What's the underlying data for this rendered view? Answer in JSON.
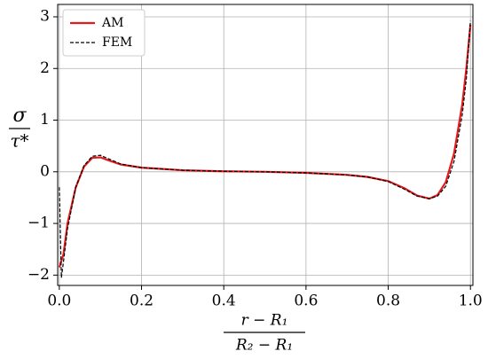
{
  "chart_data": {
    "type": "line",
    "ylabel": {
      "numerator": "σ",
      "denominator": "τ*"
    },
    "xlabel": {
      "numerator": "r − R₁",
      "denominator": "R₂ − R₁"
    },
    "xlim": [
      -0.004,
      1.006
    ],
    "ylim": [
      -2.2,
      3.24
    ],
    "xticks": [
      {
        "value": 0,
        "label": "0.0"
      },
      0.2,
      0.4,
      0.6,
      0.8,
      {
        "value": 1,
        "label": "1.0"
      }
    ],
    "yticks": [
      {
        "value": -2,
        "label": "−2"
      },
      {
        "value": -1,
        "label": "−1"
      },
      0,
      1,
      2,
      3
    ],
    "grid": true,
    "legend": "upper-left",
    "series": [
      {
        "name": "AM",
        "color": "#e41a1c",
        "dash": false,
        "x": [
          0,
          0.01,
          0.02,
          0.04,
          0.06,
          0.08,
          0.1,
          0.12,
          0.15,
          0.2,
          0.3,
          0.4,
          0.5,
          0.6,
          0.7,
          0.75,
          0.8,
          0.84,
          0.87,
          0.9,
          0.92,
          0.94,
          0.96,
          0.98,
          0.99,
          1.0
        ],
        "values": [
          -1.85,
          -1.6,
          -1.0,
          -0.3,
          0.1,
          0.27,
          0.28,
          0.22,
          0.14,
          0.08,
          0.03,
          0.01,
          0,
          -0.02,
          -0.06,
          -0.1,
          -0.18,
          -0.32,
          -0.46,
          -0.52,
          -0.45,
          -0.2,
          0.35,
          1.3,
          2.0,
          2.85
        ]
      },
      {
        "name": "FEM",
        "color": "#000000",
        "dash": true,
        "x": [
          0,
          0.005,
          0.01,
          0.02,
          0.04,
          0.06,
          0.08,
          0.1,
          0.12,
          0.15,
          0.2,
          0.3,
          0.4,
          0.5,
          0.6,
          0.7,
          0.75,
          0.8,
          0.84,
          0.87,
          0.9,
          0.92,
          0.94,
          0.96,
          0.98,
          0.99,
          1.0
        ],
        "values": [
          -0.3,
          -2.05,
          -1.75,
          -1.1,
          -0.3,
          0.12,
          0.3,
          0.32,
          0.25,
          0.15,
          0.08,
          0.03,
          0.01,
          0,
          -0.02,
          -0.06,
          -0.1,
          -0.19,
          -0.34,
          -0.47,
          -0.52,
          -0.47,
          -0.28,
          0.2,
          1.1,
          1.8,
          2.92
        ]
      }
    ]
  }
}
